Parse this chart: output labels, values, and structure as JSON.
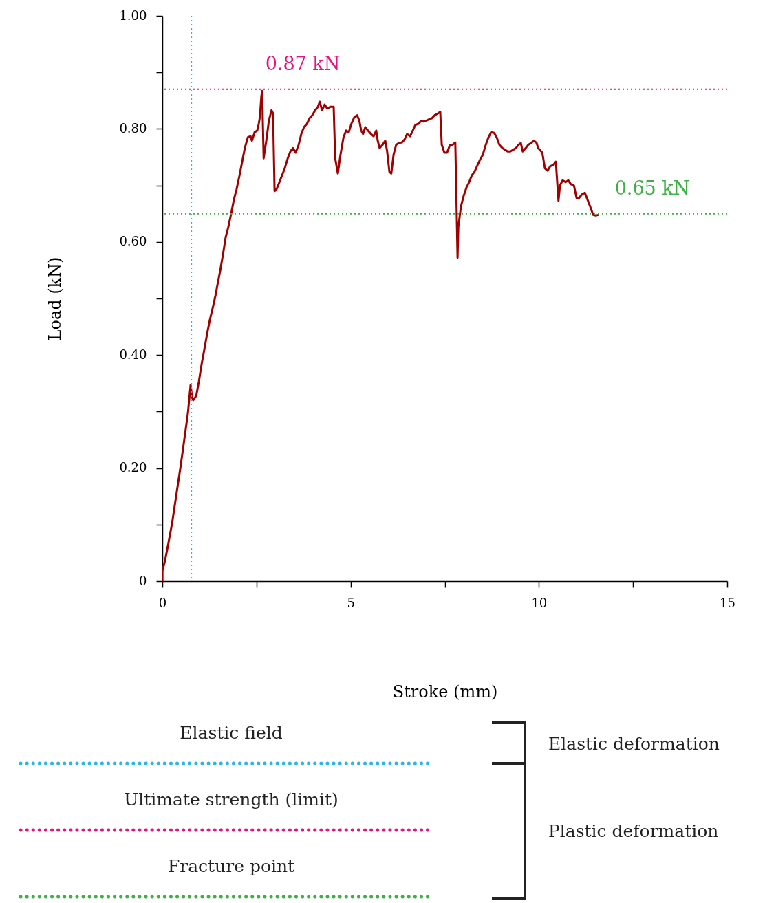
{
  "chart_data": {
    "type": "line",
    "xlabel": "Stroke (mm)",
    "ylabel": "Load (kN)",
    "xlim": [
      0,
      15
    ],
    "xticks": [
      0,
      {
        "value": 2.5,
        "label": null
      },
      5,
      {
        "value": 7.5,
        "label": null
      },
      10,
      {
        "value": 12.5,
        "label": null
      },
      15
    ],
    "ylim": [
      0,
      1
    ],
    "yticks": [
      0,
      {
        "value": 0.1,
        "label": null
      },
      {
        "value": 0.2,
        "label": "0.20"
      },
      {
        "value": 0.3,
        "label": null
      },
      {
        "value": 0.4,
        "label": "0.40"
      },
      {
        "value": 0.5,
        "label": null
      },
      {
        "value": 0.6,
        "label": "0.60"
      },
      {
        "value": 0.7,
        "label": null
      },
      {
        "value": 0.8,
        "label": "0.80"
      },
      {
        "value": 0.9,
        "label": null
      },
      {
        "value": 1,
        "label": "1.00"
      }
    ],
    "grid": false,
    "marker": "none",
    "line_style": "solid",
    "series": [
      {
        "color": "#a00000",
        "x": [
          0,
          0,
          0.07,
          0.16,
          0.26,
          0.37,
          0.48,
          0.58,
          0.68,
          0.75,
          0.79,
          0.82,
          0.9,
          0.97,
          1.04,
          1.11,
          1.19,
          1.26,
          1.33,
          1.41,
          1.46,
          1.53,
          1.61,
          1.68,
          1.75,
          1.83,
          1.9,
          1.97,
          2.05,
          2.12,
          2.19,
          2.27,
          2.34,
          2.38,
          2.45,
          2.52,
          2.56,
          2.59,
          2.63,
          2.65,
          2.69,
          2.76,
          2.83,
          2.9,
          2.94,
          2.98,
          3.03,
          3.11,
          3.18,
          3.25,
          3.33,
          3.4,
          3.47,
          3.54,
          3.62,
          3.69,
          3.76,
          3.84,
          3.91,
          3.98,
          4.06,
          4.13,
          4.18,
          4.24,
          4.31,
          4.38,
          4.46,
          4.55,
          4.59,
          4.66,
          4.73,
          4.81,
          4.88,
          4.95,
          5.02,
          5.1,
          5.17,
          5.23,
          5.28,
          5.33,
          5.39,
          5.46,
          5.54,
          5.61,
          5.68,
          5.72,
          5.77,
          5.85,
          5.92,
          5.97,
          6.03,
          6.08,
          6.14,
          6.21,
          6.28,
          6.36,
          6.43,
          6.5,
          6.58,
          6.65,
          6.72,
          6.8,
          6.87,
          6.94,
          7.02,
          7.09,
          7.16,
          7.23,
          7.31,
          7.38,
          7.42,
          7.49,
          7.56,
          7.64,
          7.71,
          7.78,
          7.84,
          7.86,
          7.93,
          8.0,
          8.08,
          8.15,
          8.22,
          8.29,
          8.37,
          8.44,
          8.51,
          8.59,
          8.66,
          8.73,
          8.81,
          8.88,
          8.95,
          9.03,
          9.1,
          9.17,
          9.24,
          9.32,
          9.39,
          9.46,
          9.52,
          9.57,
          9.65,
          9.72,
          9.79,
          9.87,
          9.94,
          9.98,
          10.09,
          10.16,
          10.23,
          10.3,
          10.38,
          10.45,
          10.52,
          10.56,
          10.63,
          10.71,
          10.78,
          10.85,
          10.93,
          11.0,
          11.07,
          11.14,
          11.22,
          11.29,
          11.36,
          11.44,
          11.51,
          11.58
        ],
        "values": [
          0,
          0.018,
          0.036,
          0.067,
          0.103,
          0.152,
          0.201,
          0.249,
          0.298,
          0.347,
          0.325,
          0.32,
          0.328,
          0.353,
          0.383,
          0.408,
          0.438,
          0.462,
          0.481,
          0.505,
          0.523,
          0.547,
          0.578,
          0.608,
          0.626,
          0.651,
          0.675,
          0.693,
          0.718,
          0.742,
          0.766,
          0.785,
          0.787,
          0.779,
          0.794,
          0.797,
          0.809,
          0.821,
          0.858,
          0.867,
          0.748,
          0.779,
          0.815,
          0.833,
          0.827,
          0.69,
          0.693,
          0.706,
          0.718,
          0.73,
          0.748,
          0.76,
          0.766,
          0.758,
          0.772,
          0.791,
          0.803,
          0.809,
          0.819,
          0.824,
          0.833,
          0.839,
          0.848,
          0.833,
          0.843,
          0.836,
          0.839,
          0.839,
          0.748,
          0.721,
          0.754,
          0.785,
          0.797,
          0.794,
          0.809,
          0.821,
          0.824,
          0.815,
          0.797,
          0.791,
          0.803,
          0.797,
          0.791,
          0.787,
          0.797,
          0.779,
          0.766,
          0.772,
          0.779,
          0.76,
          0.724,
          0.721,
          0.754,
          0.772,
          0.775,
          0.776,
          0.781,
          0.791,
          0.787,
          0.797,
          0.807,
          0.809,
          0.814,
          0.813,
          0.815,
          0.817,
          0.819,
          0.824,
          0.827,
          0.83,
          0.772,
          0.758,
          0.758,
          0.772,
          0.772,
          0.776,
          0.572,
          0.626,
          0.663,
          0.681,
          0.697,
          0.706,
          0.718,
          0.724,
          0.736,
          0.746,
          0.754,
          0.772,
          0.785,
          0.794,
          0.793,
          0.785,
          0.772,
          0.766,
          0.763,
          0.76,
          0.76,
          0.763,
          0.766,
          0.772,
          0.775,
          0.76,
          0.766,
          0.772,
          0.775,
          0.779,
          0.775,
          0.766,
          0.758,
          0.73,
          0.726,
          0.734,
          0.736,
          0.742,
          0.673,
          0.7,
          0.709,
          0.706,
          0.709,
          0.702,
          0.7,
          0.678,
          0.678,
          0.684,
          0.687,
          0.675,
          0.663,
          0.648,
          0.647,
          0.648
        ]
      }
    ],
    "ref_lines": [
      {
        "axis": "x",
        "value": 0.77,
        "color": "#29b6e8",
        "line_style": "dotted"
      },
      {
        "axis": "y",
        "value": 0.87,
        "label": "0.87 kN",
        "color": "#e6127f",
        "line_style": "dotted"
      },
      {
        "axis": "y",
        "value": 0.65,
        "label": "0.65 kN",
        "color": "#3cb043",
        "line_style": "dotted"
      }
    ],
    "annotations": [
      "Elastic field",
      "Ultimate strength (limit)",
      "Fracture point",
      "Elastic deformation",
      "Plastic deformation"
    ]
  }
}
